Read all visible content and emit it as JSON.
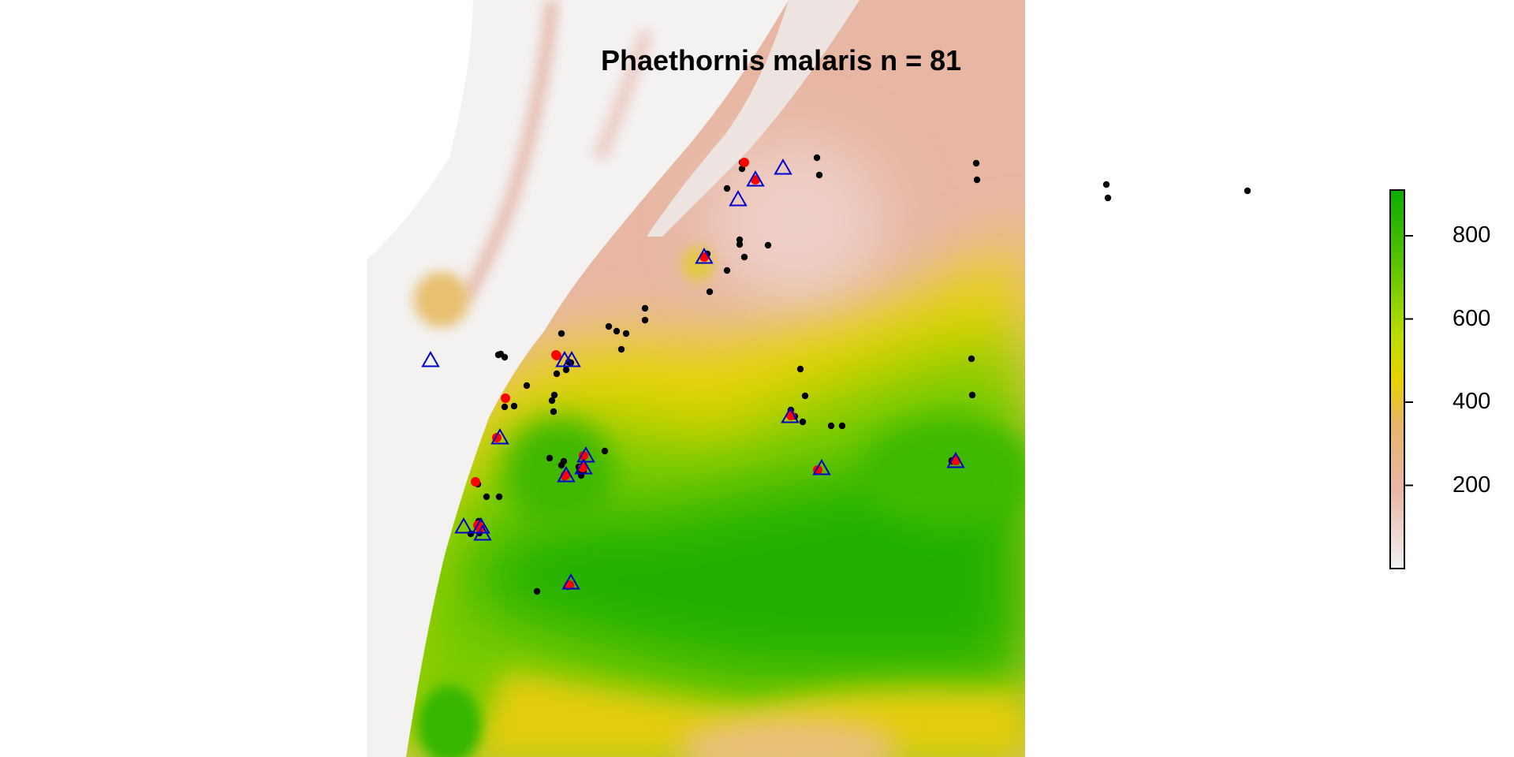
{
  "title": "Phaethornis malaris n = 81",
  "legend": {
    "ticks": [
      "200",
      "400",
      "600",
      "800"
    ],
    "tick_values": [
      200,
      400,
      600,
      800
    ],
    "min": 0,
    "max": 910,
    "colors": [
      "#f2f2f2",
      "#e9b7a8",
      "#e5b56b",
      "#e6d200",
      "#b9dd00",
      "#5dc300",
      "#0aad00"
    ]
  },
  "colors": {
    "occurrence": "#000000",
    "highlight": "#ff0000",
    "triangle": "#0000cc"
  },
  "points": {
    "black": [
      [
        941,
        206
      ],
      [
        1036,
        200
      ],
      [
        1039,
        222
      ],
      [
        1238,
        207
      ],
      [
        1239,
        228
      ],
      [
        1403,
        234
      ],
      [
        1405,
        251
      ],
      [
        1582,
        242
      ],
      [
        922,
        239
      ],
      [
        938,
        304
      ],
      [
        938,
        310
      ],
      [
        974,
        311
      ],
      [
        897,
        322
      ],
      [
        922,
        343
      ],
      [
        900,
        370
      ],
      [
        712,
        423
      ],
      [
        772,
        414
      ],
      [
        782,
        420
      ],
      [
        794,
        423
      ],
      [
        818,
        391
      ],
      [
        818,
        406
      ],
      [
        788,
        443
      ],
      [
        706,
        474
      ],
      [
        718,
        469
      ],
      [
        668,
        489
      ],
      [
        703,
        501
      ],
      [
        702,
        522
      ],
      [
        652,
        515
      ],
      [
        1015,
        468
      ],
      [
        1021,
        502
      ],
      [
        1232,
        455
      ],
      [
        1233,
        501
      ],
      [
        1003,
        520
      ],
      [
        1018,
        535
      ],
      [
        1054,
        540
      ],
      [
        1068,
        540
      ],
      [
        1008,
        528
      ],
      [
        697,
        581
      ],
      [
        715,
        585
      ],
      [
        712,
        590
      ],
      [
        734,
        592
      ],
      [
        735,
        596
      ],
      [
        767,
        572
      ],
      [
        716,
        605
      ],
      [
        737,
        603
      ],
      [
        740,
        597
      ],
      [
        617,
        630
      ],
      [
        633,
        630
      ],
      [
        607,
        661
      ],
      [
        597,
        677
      ],
      [
        608,
        676
      ],
      [
        632,
        450
      ],
      [
        635,
        449
      ],
      [
        640,
        453
      ],
      [
        681,
        750
      ],
      [
        720,
        744
      ],
      [
        1207,
        585
      ],
      [
        1211,
        582
      ],
      [
        1038,
        596
      ],
      [
        606,
        614
      ],
      [
        944,
        326
      ],
      [
        721,
        459
      ],
      [
        700,
        508
      ],
      [
        640,
        516
      ],
      [
        724,
        460
      ],
      [
        1207,
        584
      ],
      [
        941,
        214
      ]
    ],
    "red": [
      [
        944,
        206
      ],
      [
        706,
        451
      ],
      [
        641,
        505
      ],
      [
        603,
        611
      ],
      [
        958,
        228
      ],
      [
        893,
        326
      ],
      [
        630,
        555
      ],
      [
        740,
        578
      ],
      [
        739,
        593
      ],
      [
        717,
        603
      ],
      [
        609,
        670
      ],
      [
        606,
        666
      ],
      [
        1212,
        584
      ],
      [
        1037,
        596
      ],
      [
        722,
        742
      ],
      [
        1003,
        527
      ],
      [
        705,
        450
      ]
    ],
    "triangle": [
      [
        958,
        228
      ],
      [
        993,
        213
      ],
      [
        936,
        253
      ],
      [
        893,
        326
      ],
      [
        546,
        457
      ],
      [
        716,
        457
      ],
      [
        725,
        457
      ],
      [
        634,
        555
      ],
      [
        743,
        578
      ],
      [
        740,
        593
      ],
      [
        718,
        603
      ],
      [
        588,
        668
      ],
      [
        610,
        668
      ],
      [
        612,
        677
      ],
      [
        1002,
        528
      ],
      [
        1042,
        594
      ],
      [
        1212,
        585
      ],
      [
        724,
        739
      ]
    ]
  }
}
